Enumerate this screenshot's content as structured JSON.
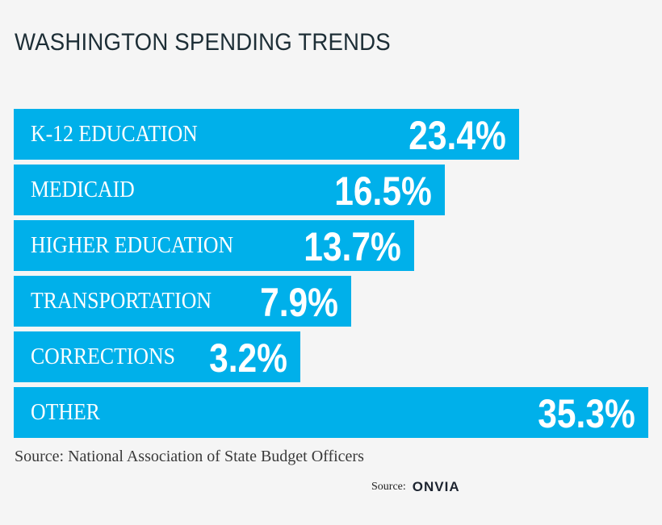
{
  "chart_data": {
    "type": "bar",
    "orientation": "horizontal",
    "title": "WASHINGTON SPENDING TRENDS",
    "categories": [
      "K-12 EDUCATION",
      "MEDICAID",
      "HIGHER EDUCATION",
      "TRANSPORTATION",
      "CORRECTIONS",
      "OTHER"
    ],
    "values": [
      23.4,
      16.5,
      13.7,
      7.9,
      3.2,
      35.3
    ],
    "data_labels": [
      "23.4%",
      "16.5%",
      "13.7%",
      "7.9%",
      "3.2%",
      "35.3%"
    ],
    "bar_color": "#00b0ea",
    "grid": false,
    "legend": "none"
  },
  "source": "Source: National Association of State Budget Officers",
  "credit": {
    "label": "Source:",
    "logo_text": "ONVIA"
  }
}
